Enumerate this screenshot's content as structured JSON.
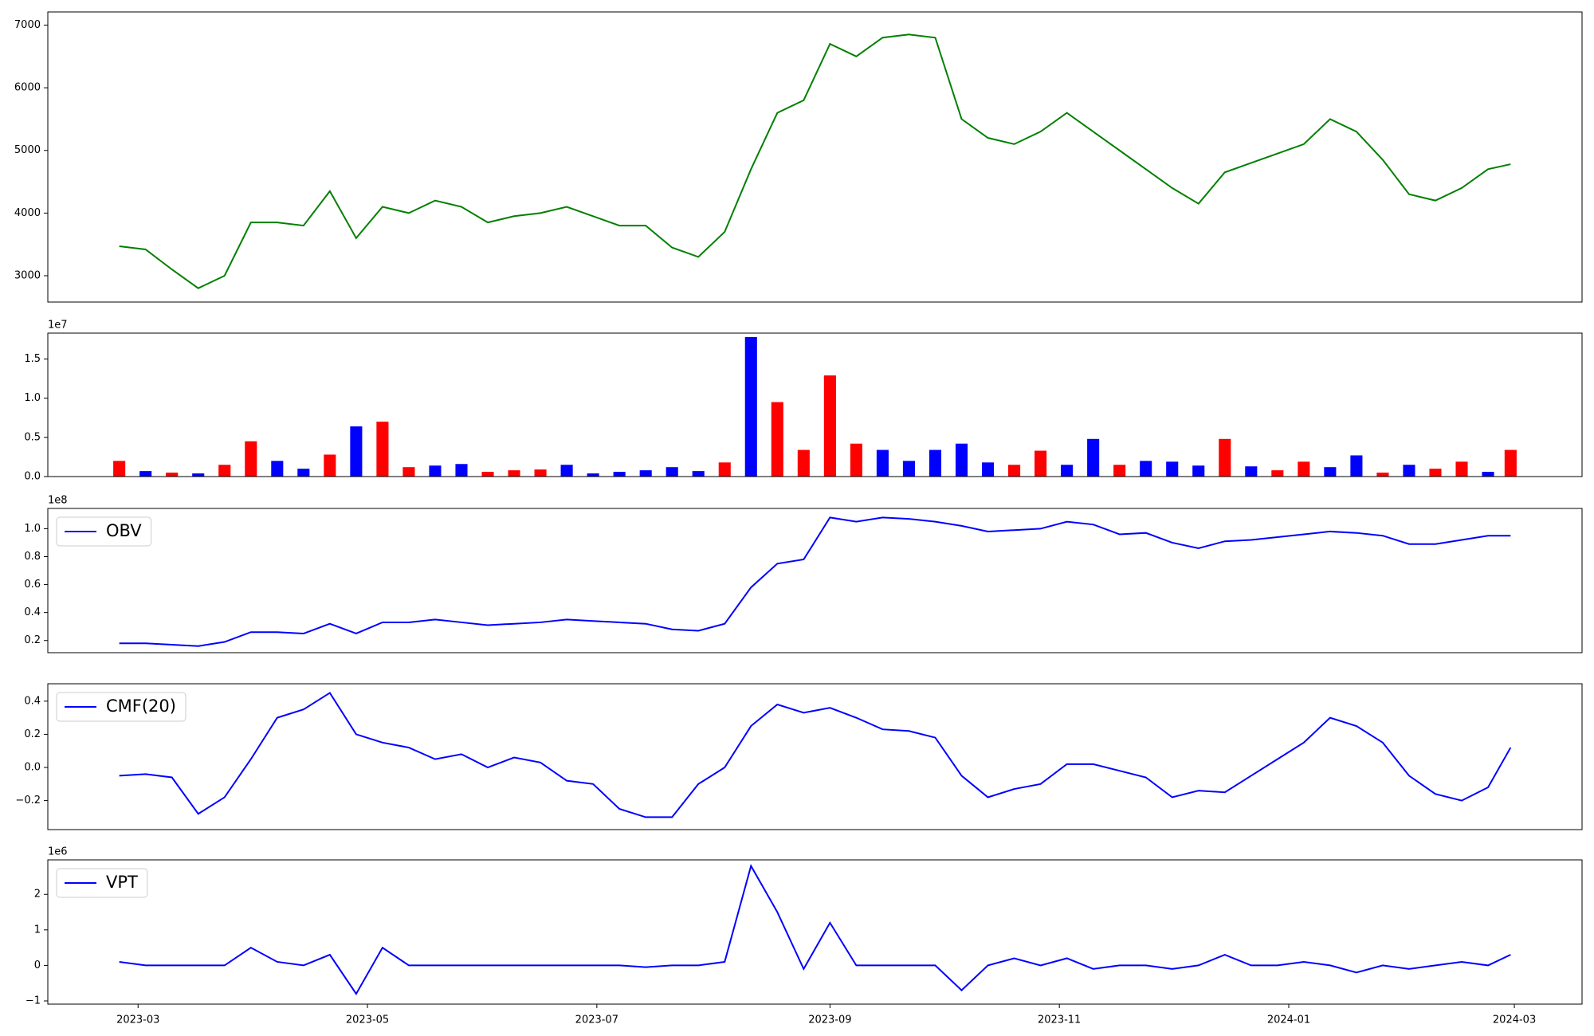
{
  "chart_data": [
    {
      "type": "line",
      "color": "#008000",
      "x": [
        "2023-02-24",
        "2023-03-03",
        "2023-03-10",
        "2023-03-17",
        "2023-03-24",
        "2023-03-31",
        "2023-04-07",
        "2023-04-14",
        "2023-04-21",
        "2023-04-28",
        "2023-05-05",
        "2023-05-12",
        "2023-05-19",
        "2023-05-26",
        "2023-06-02",
        "2023-06-09",
        "2023-06-16",
        "2023-06-23",
        "2023-06-30",
        "2023-07-07",
        "2023-07-14",
        "2023-07-21",
        "2023-07-28",
        "2023-08-04",
        "2023-08-11",
        "2023-08-18",
        "2023-08-25",
        "2023-09-01",
        "2023-09-08",
        "2023-09-15",
        "2023-09-22",
        "2023-09-29",
        "2023-10-06",
        "2023-10-13",
        "2023-10-20",
        "2023-10-27",
        "2023-11-03",
        "2023-11-10",
        "2023-11-17",
        "2023-11-24",
        "2023-12-01",
        "2023-12-08",
        "2023-12-15",
        "2023-12-22",
        "2023-12-29",
        "2024-01-05",
        "2024-01-12",
        "2024-01-19",
        "2024-01-26",
        "2024-02-02",
        "2024-02-09",
        "2024-02-16",
        "2024-02-23",
        "2024-02-29"
      ],
      "values": [
        3470,
        3420,
        3100,
        2800,
        3000,
        3850,
        3850,
        3800,
        4350,
        3600,
        4100,
        4000,
        4200,
        4100,
        3850,
        3950,
        4000,
        4100,
        3950,
        3800,
        3800,
        3450,
        3300,
        3700,
        4700,
        5600,
        5800,
        6700,
        6500,
        6800,
        6850,
        6800,
        5500,
        5200,
        5100,
        5300,
        5600,
        5300,
        5000,
        4700,
        4400,
        4150,
        4650,
        4800,
        4950,
        5100,
        5500,
        5300,
        4850,
        4300,
        4200,
        4400,
        4700,
        4780
      ],
      "xlim": [
        "2023-02-05",
        "2024-03-19"
      ],
      "ylim": [
        2580,
        7210
      ],
      "yticks": [
        3000,
        4000,
        5000,
        6000,
        7000
      ]
    },
    {
      "type": "bar",
      "y_offset_label": "1e7",
      "x": [
        "2023-02-24",
        "2023-03-03",
        "2023-03-10",
        "2023-03-17",
        "2023-03-24",
        "2023-03-31",
        "2023-04-07",
        "2023-04-14",
        "2023-04-21",
        "2023-04-28",
        "2023-05-05",
        "2023-05-12",
        "2023-05-19",
        "2023-05-26",
        "2023-06-02",
        "2023-06-09",
        "2023-06-16",
        "2023-06-23",
        "2023-06-30",
        "2023-07-07",
        "2023-07-14",
        "2023-07-21",
        "2023-07-28",
        "2023-08-04",
        "2023-08-11",
        "2023-08-18",
        "2023-08-25",
        "2023-09-01",
        "2023-09-08",
        "2023-09-15",
        "2023-09-22",
        "2023-09-29",
        "2023-10-06",
        "2023-10-13",
        "2023-10-20",
        "2023-10-27",
        "2023-11-03",
        "2023-11-10",
        "2023-11-17",
        "2023-11-24",
        "2023-12-01",
        "2023-12-08",
        "2023-12-15",
        "2023-12-22",
        "2023-12-29",
        "2024-01-05",
        "2024-01-12",
        "2024-01-19",
        "2024-01-26",
        "2024-02-02",
        "2024-02-09",
        "2024-02-16",
        "2024-02-23",
        "2024-02-29"
      ],
      "values": [
        2000000,
        700000,
        500000,
        400000,
        1500000,
        4500000,
        2000000,
        1000000,
        2800000,
        6400000,
        7000000,
        1200000,
        1400000,
        1600000,
        600000,
        800000,
        900000,
        1500000,
        400000,
        600000,
        800000,
        1200000,
        700000,
        1800000,
        17800000,
        9500000,
        3400000,
        12900000,
        4200000,
        3400000,
        2000000,
        3400000,
        4200000,
        1800000,
        1500000,
        3300000,
        1500000,
        4800000,
        1500000,
        2000000,
        1900000,
        1400000,
        4800000,
        1300000,
        800000,
        1900000,
        1200000,
        2700000,
        500000,
        1500000,
        1000000,
        1900000,
        600000,
        3400000
      ],
      "colors": [
        "#ff0000",
        "#0000ff",
        "#ff0000",
        "#0000ff",
        "#ff0000",
        "#ff0000",
        "#0000ff",
        "#0000ff",
        "#ff0000",
        "#0000ff",
        "#ff0000",
        "#ff0000",
        "#0000ff",
        "#0000ff",
        "#ff0000",
        "#ff0000",
        "#ff0000",
        "#0000ff",
        "#0000ff",
        "#0000ff",
        "#0000ff",
        "#0000ff",
        "#0000ff",
        "#ff0000",
        "#0000ff",
        "#ff0000",
        "#ff0000",
        "#ff0000",
        "#ff0000",
        "#0000ff",
        "#0000ff",
        "#0000ff",
        "#0000ff",
        "#0000ff",
        "#ff0000",
        "#ff0000",
        "#0000ff",
        "#0000ff",
        "#ff0000",
        "#0000ff",
        "#0000ff",
        "#0000ff",
        "#ff0000",
        "#0000ff",
        "#ff0000",
        "#ff0000",
        "#0000ff",
        "#0000ff",
        "#ff0000",
        "#0000ff",
        "#ff0000",
        "#ff0000",
        "#0000ff",
        "#ff0000"
      ],
      "xlim": [
        "2023-02-05",
        "2024-03-19"
      ],
      "ylim": [
        0,
        18300000
      ],
      "yticks": [
        {
          "value": 0,
          "label": "0.0"
        },
        {
          "value": 5000000,
          "label": "0.5"
        },
        {
          "value": 10000000,
          "label": "1.0"
        },
        {
          "value": 15000000,
          "label": "1.5"
        }
      ]
    },
    {
      "type": "line",
      "y_offset_label": "1e8",
      "legend": "upper left",
      "x": [
        "2023-02-24",
        "2023-03-03",
        "2023-03-10",
        "2023-03-17",
        "2023-03-24",
        "2023-03-31",
        "2023-04-07",
        "2023-04-14",
        "2023-04-21",
        "2023-04-28",
        "2023-05-05",
        "2023-05-12",
        "2023-05-19",
        "2023-05-26",
        "2023-06-02",
        "2023-06-09",
        "2023-06-16",
        "2023-06-23",
        "2023-06-30",
        "2023-07-07",
        "2023-07-14",
        "2023-07-21",
        "2023-07-28",
        "2023-08-04",
        "2023-08-11",
        "2023-08-18",
        "2023-08-25",
        "2023-09-01",
        "2023-09-08",
        "2023-09-15",
        "2023-09-22",
        "2023-09-29",
        "2023-10-06",
        "2023-10-13",
        "2023-10-20",
        "2023-10-27",
        "2023-11-03",
        "2023-11-10",
        "2023-11-17",
        "2023-11-24",
        "2023-12-01",
        "2023-12-08",
        "2023-12-15",
        "2023-12-22",
        "2023-12-29",
        "2024-01-05",
        "2024-01-12",
        "2024-01-19",
        "2024-01-26",
        "2024-02-02",
        "2024-02-09",
        "2024-02-16",
        "2024-02-23",
        "2024-02-29"
      ],
      "series": [
        {
          "name": "OBV",
          "color": "#0000ff",
          "values": [
            18000000,
            18000000,
            17000000,
            16000000,
            19000000,
            26000000,
            26000000,
            25000000,
            32000000,
            25000000,
            33000000,
            33000000,
            35000000,
            33000000,
            31000000,
            32000000,
            33000000,
            35000000,
            34000000,
            33000000,
            32000000,
            28000000,
            27000000,
            32000000,
            58000000,
            75000000,
            78000000,
            108000000,
            105000000,
            108000000,
            107000000,
            105000000,
            102000000,
            98000000,
            99000000,
            100000000,
            105000000,
            103000000,
            96000000,
            97000000,
            90000000,
            86000000,
            91000000,
            92000000,
            94000000,
            96000000,
            98000000,
            97000000,
            95000000,
            89000000,
            89000000,
            92000000,
            95000000,
            95000000
          ]
        }
      ],
      "xlim": [
        "2023-02-05",
        "2024-03-19"
      ],
      "ylim": [
        11300000,
        114500000
      ],
      "yticks": [
        {
          "value": 20000000,
          "label": "0.2"
        },
        {
          "value": 40000000,
          "label": "0.4"
        },
        {
          "value": 60000000,
          "label": "0.6"
        },
        {
          "value": 80000000,
          "label": "0.8"
        },
        {
          "value": 100000000,
          "label": "1.0"
        }
      ]
    },
    {
      "type": "line",
      "legend": "upper left",
      "x": [
        "2023-02-24",
        "2023-03-03",
        "2023-03-10",
        "2023-03-17",
        "2023-03-24",
        "2023-03-31",
        "2023-04-07",
        "2023-04-14",
        "2023-04-21",
        "2023-04-28",
        "2023-05-05",
        "2023-05-12",
        "2023-05-19",
        "2023-05-26",
        "2023-06-02",
        "2023-06-09",
        "2023-06-16",
        "2023-06-23",
        "2023-06-30",
        "2023-07-07",
        "2023-07-14",
        "2023-07-21",
        "2023-07-28",
        "2023-08-04",
        "2023-08-11",
        "2023-08-18",
        "2023-08-25",
        "2023-09-01",
        "2023-09-08",
        "2023-09-15",
        "2023-09-22",
        "2023-09-29",
        "2023-10-06",
        "2023-10-13",
        "2023-10-20",
        "2023-10-27",
        "2023-11-03",
        "2023-11-10",
        "2023-11-17",
        "2023-11-24",
        "2023-12-01",
        "2023-12-08",
        "2023-12-15",
        "2023-12-22",
        "2023-12-29",
        "2024-01-05",
        "2024-01-12",
        "2024-01-19",
        "2024-01-26",
        "2024-02-02",
        "2024-02-09",
        "2024-02-16",
        "2024-02-23",
        "2024-02-29"
      ],
      "series": [
        {
          "name": "CMF(20)",
          "color": "#0000ff",
          "values": [
            -0.05,
            -0.04,
            -0.06,
            -0.28,
            -0.18,
            0.05,
            0.3,
            0.35,
            0.45,
            0.2,
            0.15,
            0.12,
            0.05,
            0.08,
            0.0,
            0.06,
            0.03,
            -0.08,
            -0.1,
            -0.25,
            -0.3,
            -0.3,
            -0.1,
            0.0,
            0.25,
            0.38,
            0.33,
            0.36,
            0.3,
            0.23,
            0.22,
            0.18,
            -0.05,
            -0.18,
            -0.13,
            -0.1,
            0.02,
            0.02,
            -0.02,
            -0.06,
            -0.18,
            -0.14,
            -0.15,
            -0.05,
            0.05,
            0.15,
            0.3,
            0.25,
            0.15,
            -0.05,
            -0.16,
            -0.2,
            -0.12,
            0.12
          ]
        }
      ],
      "xlim": [
        "2023-02-05",
        "2024-03-19"
      ],
      "ylim": [
        -0.375,
        0.505
      ],
      "yticks": [
        {
          "value": -0.2,
          "label": "−0.2"
        },
        {
          "value": 0,
          "label": "0.0"
        },
        0.2,
        0.4
      ]
    },
    {
      "type": "line",
      "y_offset_label": "1e6",
      "legend": "upper left",
      "x": [
        "2023-02-24",
        "2023-03-03",
        "2023-03-10",
        "2023-03-17",
        "2023-03-24",
        "2023-03-31",
        "2023-04-07",
        "2023-04-14",
        "2023-04-21",
        "2023-04-28",
        "2023-05-05",
        "2023-05-12",
        "2023-05-19",
        "2023-05-26",
        "2023-06-02",
        "2023-06-09",
        "2023-06-16",
        "2023-06-23",
        "2023-06-30",
        "2023-07-07",
        "2023-07-14",
        "2023-07-21",
        "2023-07-28",
        "2023-08-04",
        "2023-08-11",
        "2023-08-18",
        "2023-08-25",
        "2023-09-01",
        "2023-09-08",
        "2023-09-15",
        "2023-09-22",
        "2023-09-29",
        "2023-10-06",
        "2023-10-13",
        "2023-10-20",
        "2023-10-27",
        "2023-11-03",
        "2023-11-10",
        "2023-11-17",
        "2023-11-24",
        "2023-12-01",
        "2023-12-08",
        "2023-12-15",
        "2023-12-22",
        "2023-12-29",
        "2024-01-05",
        "2024-01-12",
        "2024-01-19",
        "2024-01-26",
        "2024-02-02",
        "2024-02-09",
        "2024-02-16",
        "2024-02-23",
        "2024-02-29"
      ],
      "series": [
        {
          "name": "VPT",
          "color": "#0000ff",
          "values": [
            100000,
            0,
            0,
            0,
            0,
            500000,
            100000,
            0,
            300000,
            -800000,
            500000,
            0,
            0,
            0,
            0,
            0,
            0,
            0,
            0,
            0,
            -50000,
            0,
            0,
            100000,
            2800000,
            1500000,
            -100000,
            1200000,
            0,
            0,
            0,
            0,
            -700000,
            0,
            200000,
            0,
            200000,
            -100000,
            0,
            0,
            -100000,
            0,
            300000,
            0,
            0,
            100000,
            0,
            -200000,
            0,
            -100000,
            0,
            100000,
            0,
            300000
          ]
        }
      ],
      "xlim": [
        "2023-02-05",
        "2024-03-19"
      ],
      "ylim": [
        -1090000,
        2970000
      ],
      "yticks": [
        {
          "value": -1000000,
          "label": "−1"
        },
        0,
        {
          "value": 1000000,
          "label": "1"
        },
        {
          "value": 2000000,
          "label": "2"
        }
      ],
      "xticks": [
        {
          "value": "2023-03-01",
          "label": "2023-03"
        },
        {
          "value": "2023-05-01",
          "label": "2023-05"
        },
        {
          "value": "2023-07-01",
          "label": "2023-07"
        },
        {
          "value": "2023-09-01",
          "label": "2023-09"
        },
        {
          "value": "2023-11-01",
          "label": "2023-11"
        },
        {
          "value": "2024-01-01",
          "label": "2024-01"
        },
        {
          "value": "2024-03-01",
          "label": "2024-03"
        }
      ]
    }
  ]
}
